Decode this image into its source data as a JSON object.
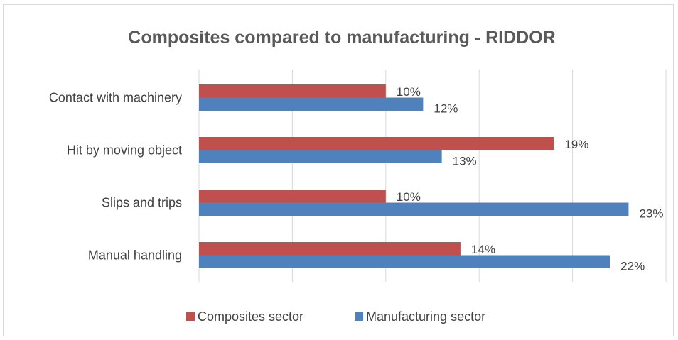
{
  "chart_data": {
    "type": "bar",
    "orientation": "horizontal",
    "title": "Composites compared to manufacturing - RIDDOR",
    "categories": [
      "Contact with machinery",
      "Hit by moving object",
      "Slips and trips",
      "Manual handling"
    ],
    "series": [
      {
        "name": "Composites sector",
        "color": "#c0504d",
        "values": [
          10,
          19,
          10,
          14
        ],
        "labels": [
          "10%",
          "19%",
          "10%",
          "14%"
        ]
      },
      {
        "name": "Manufacturing sector",
        "color": "#4f81bd",
        "values": [
          12,
          13,
          23,
          22
        ],
        "labels": [
          "12%",
          "13%",
          "23%",
          "22%"
        ]
      }
    ],
    "xlim": [
      0,
      25
    ],
    "grid": true,
    "legend_position": "bottom"
  }
}
